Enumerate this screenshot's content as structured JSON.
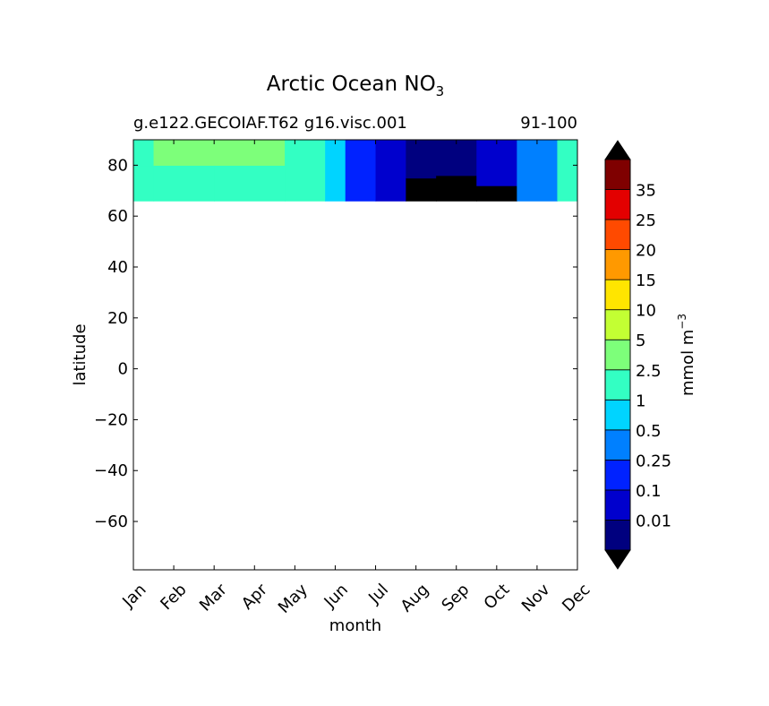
{
  "chart_data": {
    "type": "heatmap",
    "title": "Arctic Ocean NO",
    "title_subscript": "3",
    "subtitle_left": "g.e122.GECOIAF.T62 g16.visc.001",
    "subtitle_right": "91-100",
    "xlabel": "month",
    "ylabel": "latitude",
    "x_ticks": [
      "Jan",
      "Feb",
      "Mar",
      "Apr",
      "May",
      "Jun",
      "Jul",
      "Aug",
      "Sep",
      "Oct",
      "Nov",
      "Dec"
    ],
    "y_ticks": [
      80,
      60,
      40,
      20,
      0,
      -20,
      -40,
      -60
    ],
    "y_tick_labels": [
      "80",
      "60",
      "40",
      "20",
      "0",
      "−20",
      "−40",
      "−60"
    ],
    "ylim": [
      -79,
      90
    ],
    "data_lat_range": [
      66,
      90
    ],
    "colorbar": {
      "label": "mmol m",
      "label_superscript": "−3",
      "levels": [
        "0.01",
        "0.1",
        "0.25",
        "0.5",
        "1",
        "2.5",
        "5",
        "10",
        "15",
        "20",
        "25",
        "35"
      ],
      "colors": [
        "#00007f",
        "#0000cd",
        "#0022ff",
        "#0080ff",
        "#00d4ff",
        "#33ffc3",
        "#7dff7a",
        "#c3ff33",
        "#ffe500",
        "#ff9900",
        "#ff4a00",
        "#e30000",
        "#7f0000"
      ],
      "under_color": "#000000",
      "over_color": "#000000"
    },
    "field_columns": [
      {
        "month": 0,
        "bands": [
          {
            "lat": [
              66,
              80
            ],
            "level": 5
          },
          {
            "lat": [
              80,
              90
            ],
            "level": 5
          }
        ]
      },
      {
        "month": 1,
        "bands": [
          {
            "lat": [
              66,
              80
            ],
            "level": 5
          },
          {
            "lat": [
              80,
              90
            ],
            "level": 6
          }
        ]
      },
      {
        "month": 3,
        "bands": [
          {
            "lat": [
              66,
              80
            ],
            "level": 5
          },
          {
            "lat": [
              80,
              90
            ],
            "level": 6
          }
        ]
      },
      {
        "month": 4.5,
        "bands": [
          {
            "lat": [
              66,
              90
            ],
            "level": 5
          }
        ]
      },
      {
        "month": 5,
        "bands": [
          {
            "lat": [
              66,
              90
            ],
            "level": 4
          }
        ]
      },
      {
        "month": 5.5,
        "bands": [
          {
            "lat": [
              66,
              90
            ],
            "level": 2
          }
        ]
      },
      {
        "month": 6.5,
        "bands": [
          {
            "lat": [
              66,
              90
            ],
            "level": 1
          }
        ]
      },
      {
        "month": 7,
        "bands": [
          {
            "lat": [
              66,
              75
            ],
            "level": -1
          },
          {
            "lat": [
              75,
              90
            ],
            "level": 0
          }
        ]
      },
      {
        "month": 8,
        "bands": [
          {
            "lat": [
              66,
              76
            ],
            "level": -1
          },
          {
            "lat": [
              76,
              90
            ],
            "level": 0
          }
        ]
      },
      {
        "month": 9,
        "bands": [
          {
            "lat": [
              66,
              72
            ],
            "level": -1
          },
          {
            "lat": [
              72,
              90
            ],
            "level": 1
          }
        ]
      },
      {
        "month": 10,
        "bands": [
          {
            "lat": [
              66,
              90
            ],
            "level": 3
          }
        ]
      },
      {
        "month": 11,
        "bands": [
          {
            "lat": [
              66,
              90
            ],
            "level": 5
          }
        ]
      }
    ]
  }
}
